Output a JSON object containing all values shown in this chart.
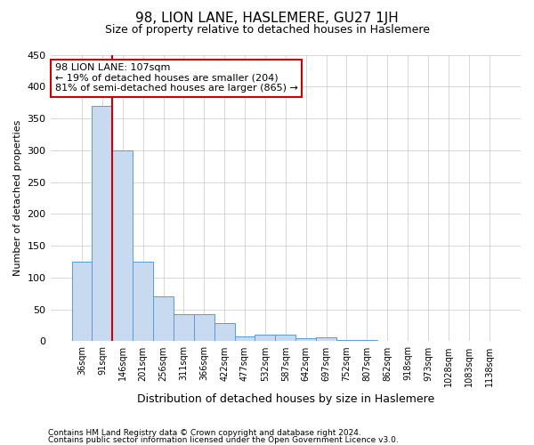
{
  "title": "98, LION LANE, HASLEMERE, GU27 1JH",
  "subtitle": "Size of property relative to detached houses in Haslemere",
  "xlabel": "Distribution of detached houses by size in Haslemere",
  "ylabel": "Number of detached properties",
  "bar_color": "#c8daf0",
  "bar_edge_color": "#5b9bd5",
  "background_color": "#ffffff",
  "grid_color": "#c8c8c8",
  "vline_color": "#cc0000",
  "vline_x": 1.5,
  "categories": [
    "36sqm",
    "91sqm",
    "146sqm",
    "201sqm",
    "256sqm",
    "311sqm",
    "366sqm",
    "422sqm",
    "477sqm",
    "532sqm",
    "587sqm",
    "642sqm",
    "697sqm",
    "752sqm",
    "807sqm",
    "862sqm",
    "918sqm",
    "973sqm",
    "1028sqm",
    "1083sqm",
    "1138sqm"
  ],
  "values": [
    125,
    370,
    300,
    125,
    70,
    42,
    42,
    28,
    7,
    10,
    10,
    5,
    6,
    2,
    2,
    1,
    1,
    1,
    1,
    1,
    1
  ],
  "ylim": [
    0,
    450
  ],
  "yticks": [
    0,
    50,
    100,
    150,
    200,
    250,
    300,
    350,
    400,
    450
  ],
  "annotation_line1": "98 LION LANE: 107sqm",
  "annotation_line2": "← 19% of detached houses are smaller (204)",
  "annotation_line3": "81% of semi-detached houses are larger (865) →",
  "ann_box_edge": "#cc0000",
  "footnote1": "Contains HM Land Registry data © Crown copyright and database right 2024.",
  "footnote2": "Contains public sector information licensed under the Open Government Licence v3.0."
}
